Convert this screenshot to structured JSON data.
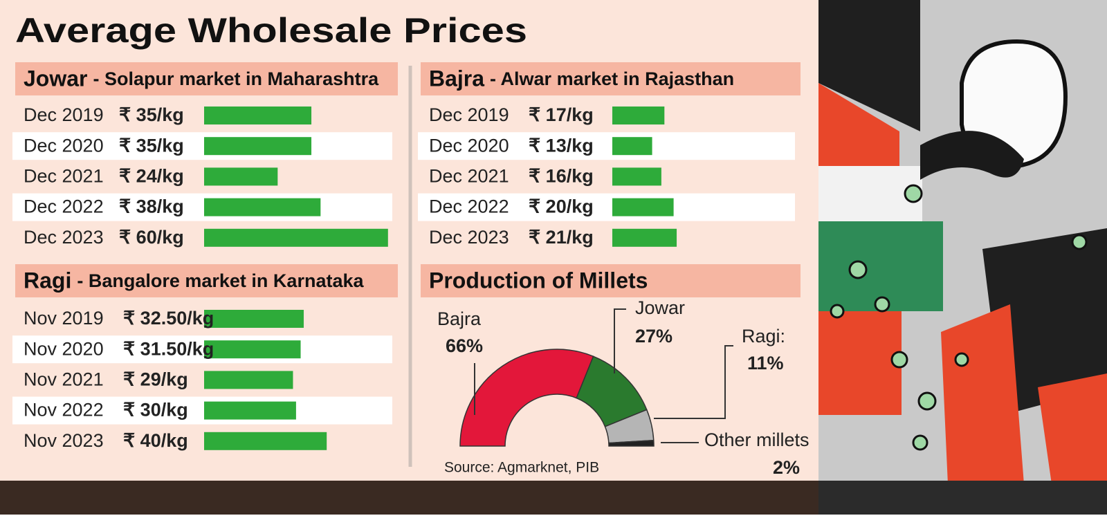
{
  "title": "Average Wholesale Prices",
  "chart_data": [
    {
      "type": "bar",
      "title": "Jowar",
      "subtitle": "- Solapur market in Maharashtra",
      "categories": [
        "Dec 2019",
        "Dec 2020",
        "Dec 2021",
        "Dec 2022",
        "Dec 2023"
      ],
      "values": [
        35,
        35,
        24,
        38,
        60
      ],
      "value_labels": [
        "₹ 35/kg",
        "₹ 35/kg",
        "₹ 24/kg",
        "₹ 38/kg",
        "₹ 60/kg"
      ],
      "color": "#2eab3a"
    },
    {
      "type": "bar",
      "title": "Ragi",
      "subtitle": "- Bangalore market in Karnataka",
      "categories": [
        "Nov 2019",
        "Nov 2020",
        "Nov 2021",
        "Nov 2022",
        "Nov 2023"
      ],
      "values": [
        32.5,
        31.5,
        29,
        30,
        40
      ],
      "value_labels": [
        "₹ 32.50/kg",
        "₹ 31.50/kg",
        "₹ 29/kg",
        "₹ 30/kg",
        "₹ 40/kg"
      ],
      "color": "#2eab3a"
    },
    {
      "type": "bar",
      "title": "Bajra",
      "subtitle": "- Alwar market in Rajasthan",
      "categories": [
        "Dec 2019",
        "Dec 2020",
        "Dec 2021",
        "Dec 2022",
        "Dec 2023"
      ],
      "values": [
        17,
        13,
        16,
        20,
        21
      ],
      "value_labels": [
        "₹ 17/kg",
        "₹ 13/kg",
        "₹ 16/kg",
        "₹ 20/kg",
        "₹ 21/kg"
      ],
      "color": "#2eab3a"
    },
    {
      "type": "pie",
      "title": "Production of Millets",
      "categories": [
        "Bajra",
        "Jowar",
        "Ragi:",
        "Other millets"
      ],
      "values": [
        66,
        27,
        11,
        2
      ],
      "value_labels": [
        "66%",
        "27%",
        "11%",
        "2%"
      ],
      "colors": [
        "#e3173a",
        "#2a7a2e",
        "#b5b5b5",
        "#222222"
      ],
      "source": "Source: Agmarknet, PIB"
    }
  ]
}
